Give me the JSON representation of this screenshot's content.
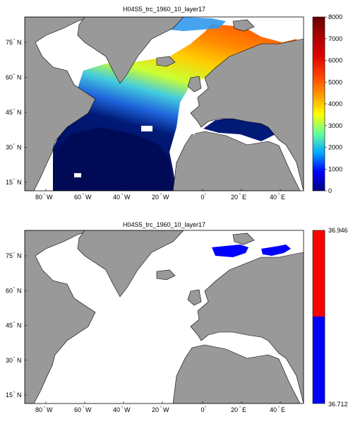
{
  "panel1": {
    "title": "H04S5_trc_1960_10_layer17",
    "colorbar": {
      "ticks": [
        "0",
        "1000",
        "2000",
        "3000",
        "4000",
        "5000",
        "6000",
        "7000",
        "8000"
      ],
      "range": [
        0,
        8000
      ]
    }
  },
  "panel2": {
    "title": "H04S5_trc_1960_10_layer17",
    "colorbar": {
      "ticks": [
        "36.712",
        "36.946"
      ],
      "colors": [
        "#0000ff",
        "#ff0000"
      ]
    }
  },
  "map": {
    "lon_labels": [
      "80",
      "60",
      "40",
      "20",
      "0",
      "20",
      "40"
    ],
    "lon_suffixes": [
      "W",
      "W",
      "W",
      "W",
      "",
      "E",
      "E"
    ],
    "lat_labels": [
      "15",
      "30",
      "45",
      "60",
      "75"
    ],
    "lat_suffix": "N",
    "land_color": "#999999",
    "ocean_empty_color": "#ffffff"
  }
}
